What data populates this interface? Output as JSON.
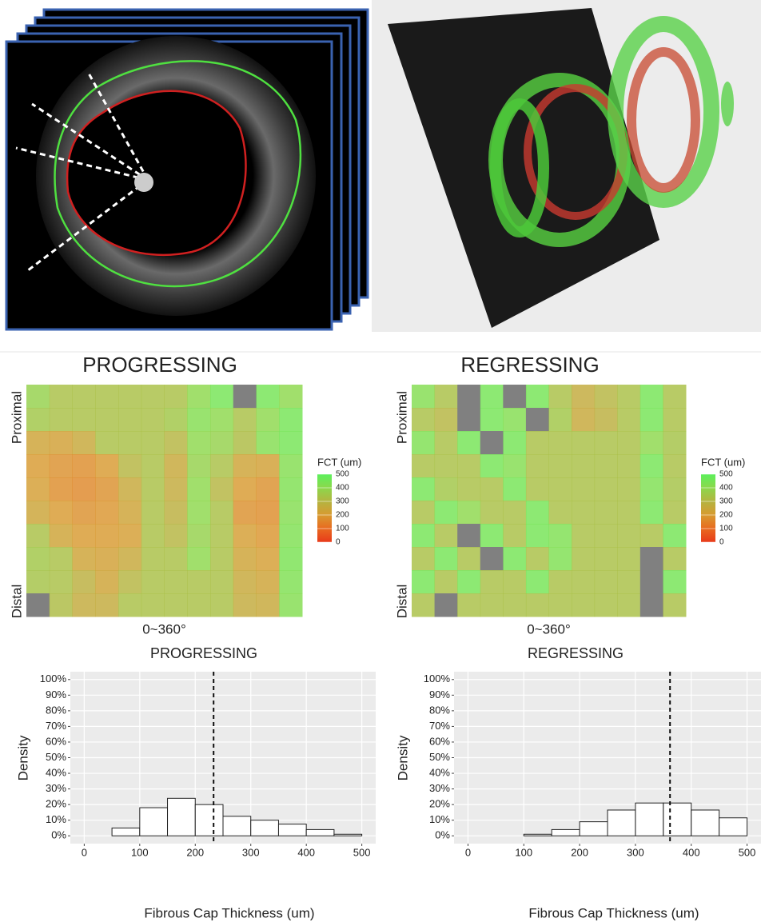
{
  "chart_data": [
    {
      "type": "heatmap",
      "title": "PROGRESSING",
      "ylabel_top": "Proximal",
      "ylabel_bottom": "Distal",
      "xlabel": "0~360°",
      "colorbar_title": "FCT (um)",
      "colorbar_ticks": [
        500,
        400,
        300,
        200,
        100,
        0
      ],
      "colorbar_colors": [
        "#5cf05c",
        "#8cd84c",
        "#b4b440",
        "#d89a30",
        "#e86a20",
        "#e83a1a"
      ],
      "missing_color": "#808080",
      "values": [
        [
          380,
          330,
          330,
          330,
          330,
          330,
          330,
          400,
          450,
          null,
          450,
          400
        ],
        [
          350,
          330,
          330,
          330,
          330,
          330,
          350,
          420,
          400,
          330,
          400,
          450
        ],
        [
          230,
          220,
          250,
          330,
          330,
          330,
          300,
          400,
          380,
          320,
          420,
          450
        ],
        [
          200,
          180,
          170,
          200,
          300,
          330,
          250,
          380,
          330,
          230,
          220,
          420
        ],
        [
          210,
          170,
          160,
          180,
          250,
          330,
          260,
          400,
          300,
          200,
          180,
          430
        ],
        [
          240,
          200,
          180,
          190,
          230,
          330,
          280,
          400,
          330,
          180,
          170,
          420
        ],
        [
          330,
          230,
          200,
          200,
          210,
          330,
          300,
          380,
          330,
          210,
          190,
          430
        ],
        [
          350,
          330,
          230,
          220,
          250,
          330,
          330,
          400,
          330,
          230,
          210,
          440
        ],
        [
          340,
          330,
          280,
          230,
          300,
          330,
          330,
          330,
          330,
          250,
          230,
          430
        ],
        [
          null,
          320,
          260,
          260,
          330,
          330,
          330,
          330,
          330,
          260,
          250,
          420
        ]
      ]
    },
    {
      "type": "heatmap",
      "title": "REGRESSING",
      "ylabel_top": "Proximal",
      "ylabel_bottom": "Distal",
      "xlabel": "0~360°",
      "colorbar_title": "FCT (um)",
      "colorbar_ticks": [
        500,
        400,
        300,
        200,
        100,
        0
      ],
      "colorbar_colors": [
        "#5cf05c",
        "#8cd84c",
        "#b4b440",
        "#d89a30",
        "#e86a20",
        "#e83a1a"
      ],
      "missing_color": "#808080",
      "values": [
        [
          420,
          330,
          null,
          450,
          null,
          450,
          330,
          260,
          300,
          330,
          450,
          330
        ],
        [
          330,
          300,
          null,
          450,
          420,
          null,
          350,
          250,
          280,
          330,
          450,
          330
        ],
        [
          430,
          330,
          450,
          null,
          450,
          330,
          330,
          330,
          330,
          330,
          400,
          340
        ],
        [
          330,
          330,
          330,
          450,
          420,
          330,
          330,
          330,
          330,
          330,
          450,
          330
        ],
        [
          450,
          350,
          330,
          330,
          450,
          330,
          330,
          330,
          330,
          330,
          430,
          340
        ],
        [
          330,
          450,
          400,
          330,
          330,
          450,
          330,
          330,
          330,
          330,
          450,
          330
        ],
        [
          450,
          330,
          null,
          450,
          330,
          450,
          430,
          330,
          330,
          330,
          330,
          450
        ],
        [
          330,
          450,
          330,
          null,
          450,
          330,
          430,
          330,
          330,
          330,
          null,
          330
        ],
        [
          450,
          330,
          450,
          330,
          330,
          450,
          330,
          330,
          330,
          330,
          null,
          450
        ],
        [
          330,
          null,
          330,
          330,
          330,
          330,
          330,
          330,
          330,
          330,
          null,
          330
        ]
      ]
    },
    {
      "type": "histogram",
      "title": "PROGRESSING",
      "xlabel": "Fibrous Cap Thickness (um)",
      "ylabel": "Density",
      "bins": [
        0,
        50,
        100,
        150,
        200,
        250,
        300,
        350,
        400,
        450,
        500
      ],
      "values": [
        0,
        5,
        18,
        24,
        20,
        12.5,
        10,
        7.5,
        4,
        1
      ],
      "mean": 233,
      "xlim": [
        -25,
        525
      ],
      "xticks": [
        0,
        100,
        200,
        300,
        400,
        500
      ],
      "ylim": [
        -5,
        105
      ],
      "yticks": [
        {
          "value": 0,
          "label": "0%"
        },
        {
          "value": 10,
          "label": "10%"
        },
        {
          "value": 20,
          "label": "20%"
        },
        {
          "value": 30,
          "label": "30%"
        },
        {
          "value": 40,
          "label": "40%"
        },
        {
          "value": 50,
          "label": "50%"
        },
        {
          "value": 60,
          "label": "60%"
        },
        {
          "value": 70,
          "label": "70%"
        },
        {
          "value": 80,
          "label": "80%"
        },
        {
          "value": 90,
          "label": "90%"
        },
        {
          "value": 100,
          "label": "100%"
        }
      ],
      "grid": true
    },
    {
      "type": "histogram",
      "title": "REGRESSING",
      "xlabel": "Fibrous Cap Thickness (um)",
      "ylabel": "Density",
      "bins": [
        0,
        50,
        100,
        150,
        200,
        250,
        300,
        350,
        400,
        450,
        500
      ],
      "values": [
        0,
        0,
        1,
        4,
        9,
        16.5,
        21,
        21,
        16.5,
        11.5
      ],
      "mean": 362,
      "xlim": [
        -25,
        525
      ],
      "xticks": [
        0,
        100,
        200,
        300,
        400,
        500
      ],
      "ylim": [
        -5,
        105
      ],
      "yticks": [
        {
          "value": 0,
          "label": "0%"
        },
        {
          "value": 10,
          "label": "10%"
        },
        {
          "value": 20,
          "label": "20%"
        },
        {
          "value": 30,
          "label": "30%"
        },
        {
          "value": 40,
          "label": "40%"
        },
        {
          "value": 50,
          "label": "50%"
        },
        {
          "value": 60,
          "label": "60%"
        },
        {
          "value": 70,
          "label": "70%"
        },
        {
          "value": 80,
          "label": "80%"
        },
        {
          "value": 90,
          "label": "90%"
        },
        {
          "value": 100,
          "label": "100%"
        }
      ],
      "grid": true
    }
  ]
}
